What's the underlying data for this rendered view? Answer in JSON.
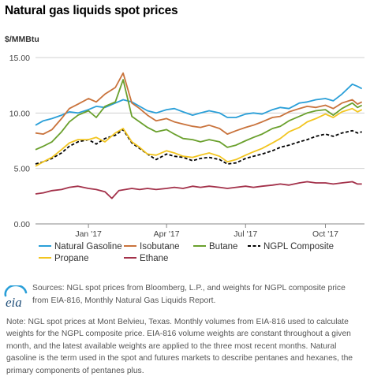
{
  "title": "Natural gas liquids spot prices",
  "chart_data": {
    "type": "line",
    "unit_label": "$/MMBtu",
    "ylim": [
      0,
      15
    ],
    "y_ticks": [
      "0.00",
      "5.00",
      "10.00",
      "15.00"
    ],
    "x_start": "2016-11-01",
    "x_end": "2017-11-15",
    "x_ticks": [
      {
        "label": "Jan '17",
        "date": "2017-01-01"
      },
      {
        "label": "Apr '17",
        "date": "2017-04-01"
      },
      {
        "label": "Jul '17",
        "date": "2017-07-01"
      },
      {
        "label": "Oct '17",
        "date": "2017-10-01"
      }
    ],
    "grid": "horizontal",
    "legend_position": "bottom",
    "series": [
      {
        "name": "Natural Gasoline",
        "color": "#2a9fd8",
        "dash": "solid",
        "points": [
          [
            "2016-11-01",
            8.9
          ],
          [
            "2016-11-10",
            9.3
          ],
          [
            "2016-11-20",
            9.5
          ],
          [
            "2016-12-01",
            9.8
          ],
          [
            "2016-12-10",
            10.1
          ],
          [
            "2016-12-20",
            10.0
          ],
          [
            "2017-01-01",
            10.3
          ],
          [
            "2017-01-10",
            10.6
          ],
          [
            "2017-01-20",
            10.5
          ],
          [
            "2017-02-01",
            10.9
          ],
          [
            "2017-02-10",
            11.2
          ],
          [
            "2017-02-20",
            11.0
          ],
          [
            "2017-03-01",
            10.6
          ],
          [
            "2017-03-10",
            10.2
          ],
          [
            "2017-03-20",
            10.0
          ],
          [
            "2017-04-01",
            10.3
          ],
          [
            "2017-04-10",
            10.4
          ],
          [
            "2017-04-20",
            10.1
          ],
          [
            "2017-05-01",
            9.8
          ],
          [
            "2017-05-10",
            10.0
          ],
          [
            "2017-05-20",
            10.2
          ],
          [
            "2017-06-01",
            10.0
          ],
          [
            "2017-06-10",
            9.6
          ],
          [
            "2017-06-20",
            9.6
          ],
          [
            "2017-07-01",
            9.9
          ],
          [
            "2017-07-10",
            10.0
          ],
          [
            "2017-07-20",
            9.9
          ],
          [
            "2017-08-01",
            10.3
          ],
          [
            "2017-08-10",
            10.5
          ],
          [
            "2017-08-20",
            10.4
          ],
          [
            "2017-09-01",
            10.9
          ],
          [
            "2017-09-10",
            11.0
          ],
          [
            "2017-09-20",
            11.2
          ],
          [
            "2017-10-01",
            11.3
          ],
          [
            "2017-10-10",
            11.1
          ],
          [
            "2017-10-20",
            11.7
          ],
          [
            "2017-11-01",
            12.6
          ],
          [
            "2017-11-07",
            12.4
          ],
          [
            "2017-11-12",
            12.2
          ]
        ]
      },
      {
        "name": "Isobutane",
        "color": "#c9733c",
        "dash": "solid",
        "points": [
          [
            "2016-11-01",
            8.2
          ],
          [
            "2016-11-10",
            8.1
          ],
          [
            "2016-11-20",
            8.5
          ],
          [
            "2016-12-01",
            9.5
          ],
          [
            "2016-12-10",
            10.4
          ],
          [
            "2016-12-20",
            10.8
          ],
          [
            "2017-01-01",
            11.3
          ],
          [
            "2017-01-10",
            11.0
          ],
          [
            "2017-01-20",
            11.7
          ],
          [
            "2017-02-01",
            12.3
          ],
          [
            "2017-02-10",
            13.6
          ],
          [
            "2017-02-20",
            10.9
          ],
          [
            "2017-03-01",
            10.4
          ],
          [
            "2017-03-10",
            9.8
          ],
          [
            "2017-03-20",
            9.3
          ],
          [
            "2017-04-01",
            9.5
          ],
          [
            "2017-04-10",
            9.2
          ],
          [
            "2017-04-20",
            9.0
          ],
          [
            "2017-05-01",
            8.8
          ],
          [
            "2017-05-10",
            8.7
          ],
          [
            "2017-05-20",
            8.9
          ],
          [
            "2017-06-01",
            8.6
          ],
          [
            "2017-06-10",
            8.1
          ],
          [
            "2017-06-20",
            8.4
          ],
          [
            "2017-07-01",
            8.7
          ],
          [
            "2017-07-10",
            8.9
          ],
          [
            "2017-07-20",
            9.2
          ],
          [
            "2017-08-01",
            9.6
          ],
          [
            "2017-08-10",
            9.7
          ],
          [
            "2017-08-20",
            10.1
          ],
          [
            "2017-09-01",
            10.4
          ],
          [
            "2017-09-10",
            10.6
          ],
          [
            "2017-09-20",
            10.5
          ],
          [
            "2017-10-01",
            10.7
          ],
          [
            "2017-10-10",
            10.4
          ],
          [
            "2017-10-20",
            10.9
          ],
          [
            "2017-11-01",
            11.2
          ],
          [
            "2017-11-07",
            10.8
          ],
          [
            "2017-11-12",
            11.0
          ]
        ]
      },
      {
        "name": "Butane",
        "color": "#6aa02d",
        "dash": "solid",
        "points": [
          [
            "2016-11-01",
            6.7
          ],
          [
            "2016-11-10",
            7.0
          ],
          [
            "2016-11-20",
            7.4
          ],
          [
            "2016-12-01",
            8.3
          ],
          [
            "2016-12-10",
            9.2
          ],
          [
            "2016-12-20",
            9.8
          ],
          [
            "2017-01-01",
            10.2
          ],
          [
            "2017-01-10",
            9.6
          ],
          [
            "2017-01-20",
            10.6
          ],
          [
            "2017-02-01",
            11.0
          ],
          [
            "2017-02-10",
            13.0
          ],
          [
            "2017-02-20",
            9.7
          ],
          [
            "2017-03-01",
            9.2
          ],
          [
            "2017-03-10",
            8.7
          ],
          [
            "2017-03-20",
            8.3
          ],
          [
            "2017-04-01",
            8.5
          ],
          [
            "2017-04-10",
            8.1
          ],
          [
            "2017-04-20",
            7.7
          ],
          [
            "2017-05-01",
            7.6
          ],
          [
            "2017-05-10",
            7.4
          ],
          [
            "2017-05-20",
            7.6
          ],
          [
            "2017-06-01",
            7.4
          ],
          [
            "2017-06-10",
            6.9
          ],
          [
            "2017-06-20",
            7.1
          ],
          [
            "2017-07-01",
            7.5
          ],
          [
            "2017-07-10",
            7.8
          ],
          [
            "2017-07-20",
            8.1
          ],
          [
            "2017-08-01",
            8.6
          ],
          [
            "2017-08-10",
            8.8
          ],
          [
            "2017-08-20",
            9.3
          ],
          [
            "2017-09-01",
            9.7
          ],
          [
            "2017-09-10",
            10.0
          ],
          [
            "2017-09-20",
            10.2
          ],
          [
            "2017-10-01",
            10.3
          ],
          [
            "2017-10-10",
            9.8
          ],
          [
            "2017-10-20",
            10.4
          ],
          [
            "2017-11-01",
            10.9
          ],
          [
            "2017-11-07",
            10.5
          ],
          [
            "2017-11-12",
            10.7
          ]
        ]
      },
      {
        "name": "NGPL Composite",
        "color": "#000000",
        "dash": "dashed",
        "points": [
          [
            "2016-11-01",
            5.4
          ],
          [
            "2016-11-10",
            5.6
          ],
          [
            "2016-11-20",
            5.9
          ],
          [
            "2016-12-01",
            6.4
          ],
          [
            "2016-12-10",
            7.0
          ],
          [
            "2016-12-20",
            7.4
          ],
          [
            "2017-01-01",
            7.6
          ],
          [
            "2017-01-10",
            7.2
          ],
          [
            "2017-01-20",
            7.7
          ],
          [
            "2017-02-01",
            8.0
          ],
          [
            "2017-02-10",
            8.5
          ],
          [
            "2017-02-20",
            7.3
          ],
          [
            "2017-03-01",
            6.8
          ],
          [
            "2017-03-10",
            6.3
          ],
          [
            "2017-03-20",
            5.8
          ],
          [
            "2017-04-01",
            6.3
          ],
          [
            "2017-04-10",
            6.1
          ],
          [
            "2017-04-20",
            6.0
          ],
          [
            "2017-05-01",
            5.7
          ],
          [
            "2017-05-10",
            5.9
          ],
          [
            "2017-05-20",
            6.0
          ],
          [
            "2017-06-01",
            5.8
          ],
          [
            "2017-06-10",
            5.4
          ],
          [
            "2017-06-20",
            5.5
          ],
          [
            "2017-07-01",
            5.9
          ],
          [
            "2017-07-10",
            6.1
          ],
          [
            "2017-07-20",
            6.3
          ],
          [
            "2017-08-01",
            6.6
          ],
          [
            "2017-08-10",
            6.9
          ],
          [
            "2017-08-20",
            7.1
          ],
          [
            "2017-09-01",
            7.4
          ],
          [
            "2017-09-10",
            7.6
          ],
          [
            "2017-09-20",
            7.9
          ],
          [
            "2017-10-01",
            8.1
          ],
          [
            "2017-10-10",
            7.9
          ],
          [
            "2017-10-20",
            8.2
          ],
          [
            "2017-11-01",
            8.4
          ],
          [
            "2017-11-07",
            8.2
          ],
          [
            "2017-11-12",
            8.3
          ]
        ]
      },
      {
        "name": "Propane",
        "color": "#f2c520",
        "dash": "solid",
        "points": [
          [
            "2016-11-01",
            5.2
          ],
          [
            "2016-11-10",
            5.6
          ],
          [
            "2016-11-20",
            6.0
          ],
          [
            "2016-12-01",
            6.7
          ],
          [
            "2016-12-10",
            7.3
          ],
          [
            "2016-12-20",
            7.6
          ],
          [
            "2017-01-01",
            7.6
          ],
          [
            "2017-01-10",
            7.8
          ],
          [
            "2017-01-20",
            7.4
          ],
          [
            "2017-02-01",
            8.2
          ],
          [
            "2017-02-10",
            8.6
          ],
          [
            "2017-02-20",
            7.4
          ],
          [
            "2017-03-01",
            6.9
          ],
          [
            "2017-03-10",
            6.3
          ],
          [
            "2017-03-20",
            6.2
          ],
          [
            "2017-04-01",
            6.6
          ],
          [
            "2017-04-10",
            6.4
          ],
          [
            "2017-04-20",
            6.1
          ],
          [
            "2017-05-01",
            6.0
          ],
          [
            "2017-05-10",
            6.2
          ],
          [
            "2017-05-20",
            6.4
          ],
          [
            "2017-06-01",
            6.1
          ],
          [
            "2017-06-10",
            5.6
          ],
          [
            "2017-06-20",
            5.8
          ],
          [
            "2017-07-01",
            6.2
          ],
          [
            "2017-07-10",
            6.5
          ],
          [
            "2017-07-20",
            6.8
          ],
          [
            "2017-08-01",
            7.3
          ],
          [
            "2017-08-10",
            7.7
          ],
          [
            "2017-08-20",
            8.3
          ],
          [
            "2017-09-01",
            8.7
          ],
          [
            "2017-09-10",
            9.2
          ],
          [
            "2017-09-20",
            9.5
          ],
          [
            "2017-10-01",
            9.9
          ],
          [
            "2017-10-10",
            9.6
          ],
          [
            "2017-10-20",
            10.1
          ],
          [
            "2017-11-01",
            10.4
          ],
          [
            "2017-11-07",
            10.1
          ],
          [
            "2017-11-12",
            10.3
          ]
        ]
      },
      {
        "name": "Ethane",
        "color": "#a3314a",
        "dash": "solid",
        "points": [
          [
            "2016-11-01",
            2.7
          ],
          [
            "2016-11-10",
            2.8
          ],
          [
            "2016-11-20",
            3.0
          ],
          [
            "2016-12-01",
            3.1
          ],
          [
            "2016-12-10",
            3.3
          ],
          [
            "2016-12-20",
            3.4
          ],
          [
            "2017-01-01",
            3.2
          ],
          [
            "2017-01-10",
            3.1
          ],
          [
            "2017-01-20",
            2.9
          ],
          [
            "2017-01-28",
            2.3
          ],
          [
            "2017-02-05",
            3.0
          ],
          [
            "2017-02-20",
            3.2
          ],
          [
            "2017-03-01",
            3.1
          ],
          [
            "2017-03-10",
            3.2
          ],
          [
            "2017-03-20",
            3.1
          ],
          [
            "2017-04-01",
            3.2
          ],
          [
            "2017-04-10",
            3.3
          ],
          [
            "2017-04-20",
            3.2
          ],
          [
            "2017-05-01",
            3.4
          ],
          [
            "2017-05-10",
            3.3
          ],
          [
            "2017-05-20",
            3.4
          ],
          [
            "2017-06-01",
            3.3
          ],
          [
            "2017-06-10",
            3.2
          ],
          [
            "2017-06-20",
            3.3
          ],
          [
            "2017-07-01",
            3.4
          ],
          [
            "2017-07-10",
            3.3
          ],
          [
            "2017-07-20",
            3.4
          ],
          [
            "2017-08-01",
            3.5
          ],
          [
            "2017-08-10",
            3.6
          ],
          [
            "2017-08-20",
            3.5
          ],
          [
            "2017-09-01",
            3.7
          ],
          [
            "2017-09-10",
            3.8
          ],
          [
            "2017-09-20",
            3.7
          ],
          [
            "2017-10-01",
            3.7
          ],
          [
            "2017-10-10",
            3.6
          ],
          [
            "2017-10-20",
            3.7
          ],
          [
            "2017-11-01",
            3.8
          ],
          [
            "2017-11-07",
            3.6
          ],
          [
            "2017-11-12",
            3.6
          ]
        ]
      }
    ]
  },
  "logo_text": "eia",
  "source": "Sources: NGL spot prices from Bloomberg, L.P., and weights for NGPL composite price from EIA-816, Monthly Natural Gas Liquids Report.",
  "note": "Note: NGL spot prices at Mont Belvieu, Texas. Monthly volumes from EIA-816 used to calculate weights for the NGPL composite price. EIA-816 volume weights are constant throughout a given month, and the latest available weights are applied to the three most recent months. Natural gasoline is the term used in the spot and futures markets to describe pentanes and hexanes, the primary components of pentanes plus."
}
